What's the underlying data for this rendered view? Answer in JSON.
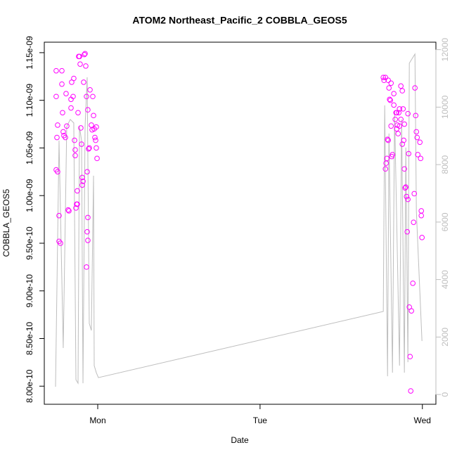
{
  "chart_data": {
    "type": "scatter",
    "title": "ATOM2 Northeast_Pacific_2 COBBLA_GEOS5",
    "xlabel": "Date",
    "ylabel": "COBBLA_GEOS5",
    "xlim": [
      -7.9,
      50
    ],
    "xticks": [
      {
        "value": 0,
        "label": "Mon"
      },
      {
        "value": 24,
        "label": "Tue"
      },
      {
        "value": 48,
        "label": "Wed"
      }
    ],
    "ylim": [
      7.81e-10,
      1.161e-09
    ],
    "yticks": [
      {
        "value": 8e-10,
        "label": "8.00e-10"
      },
      {
        "value": 8.5e-10,
        "label": "8.50e-10"
      },
      {
        "value": 9e-10,
        "label": "9.00e-10"
      },
      {
        "value": 9.5e-10,
        "label": "9.50e-10"
      },
      {
        "value": 1e-09,
        "label": "1.00e-09"
      },
      {
        "value": 1.05e-09,
        "label": "1.05e-09"
      },
      {
        "value": 1.1e-09,
        "label": "1.10e-09"
      },
      {
        "value": 1.15e-09,
        "label": "1.15e-09"
      }
    ],
    "y2lim": [
      -340,
      12260
    ],
    "y2ticks": [
      0,
      2000,
      4000,
      6000,
      8000,
      10000,
      12000
    ],
    "y2color": "#bebebe",
    "series": [
      {
        "type": "scatter",
        "color": "#ff00ff",
        "x": [
          -6.14,
          -6.14,
          -5.93,
          -6.03,
          -6.14,
          -5.93,
          -5.72,
          -5.51,
          -5.72,
          -5.3,
          -5.3,
          -5.2,
          -5.1,
          -4.99,
          -4.78,
          -4.68,
          -4.58,
          -4.37,
          -4.26,
          -3.95,
          -3.95,
          -3.85,
          -3.64,
          -3.54,
          -3.43,
          -3.33,
          -3.33,
          -3.22,
          -3.12,
          -3.02,
          -3.02,
          -2.91,
          -2.81,
          -2.7,
          -2.6,
          -2.5,
          -2.39,
          -2.29,
          -2.18,
          -2.08,
          -1.98,
          -1.87,
          -1.77,
          -1.66,
          -1.56,
          -1.46,
          -1.35,
          -1.25,
          -1.14,
          -0.94,
          -0.83,
          -0.73,
          -0.62,
          -0.52,
          -0.42,
          -0.31,
          -0.21,
          -1.56,
          -1.46,
          -1.66,
          -2.29,
          -1.46,
          -0.1,
          -0.21,
          42.22,
          42.33,
          42.54,
          42.64,
          42.75,
          42.85,
          42.95,
          43.06,
          43.16,
          43.26,
          43.37,
          43.47,
          43.58,
          43.78,
          43.99,
          44.1,
          44.2,
          44.3,
          44.41,
          44.51,
          44.62,
          44.82,
          45.03,
          45.14,
          45.24,
          45.34,
          45.45,
          45.55,
          45.66,
          45.76,
          45.86,
          45.97,
          46.07,
          46.18,
          46.28,
          46.38,
          46.59,
          46.7,
          46.8,
          46.9,
          47.01,
          47.11,
          47.22,
          47.32,
          47.63,
          47.74,
          47.84,
          47.84,
          47.94,
          42.54,
          42.95,
          43.37,
          43.78,
          44.2,
          44.82,
          45.34,
          45.86,
          44.62,
          45.03
        ],
        "values": [
          1.131e-09,
          1.104e-09,
          1.074e-09,
          1.061e-09,
          1.027e-09,
          1.025e-09,
          9.79e-10,
          9.5e-10,
          9.52e-10,
          1.131e-09,
          1.117e-09,
          1.087e-09,
          1.067e-09,
          1.063e-09,
          1.061e-09,
          1.107e-09,
          1.073e-09,
          9.85e-10,
          9.84e-10,
          1.092e-09,
          1.101e-09,
          1.119e-09,
          1.104e-09,
          1.123e-09,
          1.058e-09,
          1.048e-09,
          1.042e-09,
          9.87e-10,
          9.91e-10,
          9.91e-10,
          1.005e-09,
          1.087e-09,
          1.146e-09,
          1.146e-09,
          1.138e-09,
          1.071e-09,
          1.054e-09,
          1.019e-09,
          1.015e-09,
          1.119e-09,
          1.148e-09,
          1.149e-09,
          1.136e-09,
          1.104e-09,
          1.025e-09,
          1.09e-09,
          1.049e-09,
          1.05e-09,
          1.111e-09,
          1.074e-09,
          1.069e-09,
          1.104e-09,
          1.084e-09,
          1.07e-09,
          1.061e-09,
          1.058e-09,
          1.05e-09,
          9.62e-10,
          9.53e-10,
          9.25e-10,
          1.011e-09,
          9.77e-10,
          1.039e-09,
          1.072e-09,
          1.124e-09,
          1.121e-09,
          1.028e-09,
          1.034e-09,
          1.039e-09,
          1.059e-09,
          1.058e-09,
          1.113e-09,
          1.101e-09,
          1.1e-09,
          1.073e-09,
          1.041e-09,
          1.043e-09,
          1.095e-09,
          1.08e-09,
          1.087e-09,
          1.07e-09,
          1.074e-09,
          1.065e-09,
          1.087e-09,
          1.091e-09,
          1.115e-09,
          1.11e-09,
          1.091e-09,
          1.058e-09,
          1.028e-09,
          1.008e-09,
          1.009e-09,
          9.99e-10,
          9.62e-10,
          9.96e-10,
          1.044e-09,
          8.83e-10,
          8.31e-10,
          7.95e-10,
          8.79e-10,
          9.08e-10,
          9.72e-10,
          1.002e-09,
          1.113e-09,
          1.084e-09,
          1.067e-09,
          1.061e-09,
          1.043e-09,
          1.056e-09,
          1.039e-09,
          9.84e-10,
          9.79e-10,
          9.56e-10,
          1.124e-09,
          1.121e-09,
          1.118e-09,
          1.107e-09,
          1.087e-09,
          1.08e-09,
          1.075e-09,
          1.086e-09,
          1.073e-09,
          1.054e-09
        ]
      },
      {
        "type": "line",
        "axis": "y2",
        "color": "#bebebe",
        "x": [
          -6.24,
          -5.72,
          -5.1,
          -4.58,
          -4.06,
          -3.54,
          -3.22,
          -2.91,
          -2.7,
          -2.39,
          -2.18,
          -1.87,
          -1.56,
          -1.25,
          -0.94,
          -0.62,
          -0.52,
          -0.21,
          0.1,
          42.22,
          42.43,
          42.85,
          43.06,
          43.58,
          43.89,
          44.62,
          44.93,
          45.34,
          45.55,
          45.86,
          46.07,
          46.9,
          47.11,
          47.94
        ],
        "values": [
          269,
          8837,
          1616,
          9327,
          9572,
          9449,
          514,
          392,
          9327,
          8837,
          392,
          9327,
          11040,
          2472,
          2228,
          7613,
          1004,
          759,
          588,
          2889,
          10061,
          636,
          9082,
          759,
          9816,
          1004,
          9572,
          759,
          8592,
          1126,
          11530,
          11848,
          6389,
          1860
        ]
      }
    ]
  }
}
